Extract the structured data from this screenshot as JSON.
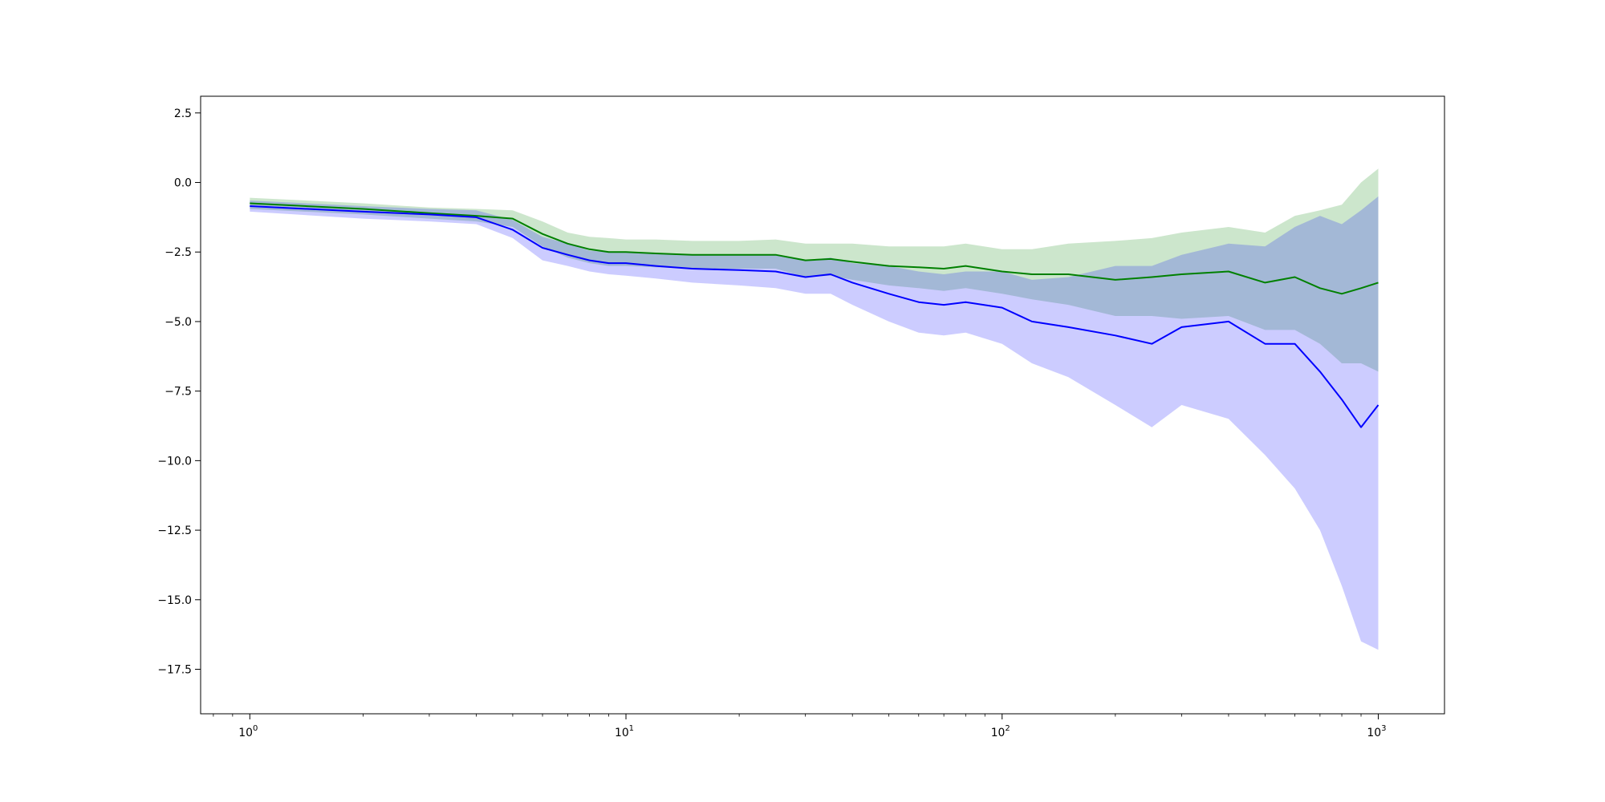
{
  "chart_data": {
    "type": "line",
    "title": "",
    "xlabel": "",
    "ylabel": "",
    "x_scale": "log",
    "xlim": [
      0.74,
      1500
    ],
    "ylim": [
      -19.1,
      3.1
    ],
    "grid": false,
    "legend": "none",
    "x_major_ticks": [
      {
        "value": 1,
        "base": "10",
        "exp": "0"
      },
      {
        "value": 10,
        "base": "10",
        "exp": "1"
      },
      {
        "value": 100,
        "base": "10",
        "exp": "2"
      },
      {
        "value": 1000,
        "base": "10",
        "exp": "3"
      }
    ],
    "x_minor_ticks": [
      0.8,
      0.9,
      2,
      3,
      4,
      5,
      6,
      7,
      8,
      9,
      20,
      30,
      40,
      50,
      60,
      70,
      80,
      90,
      200,
      300,
      400,
      500,
      600,
      700,
      800,
      900
    ],
    "y_ticks": [
      {
        "value": 2.5,
        "label": "2.5"
      },
      {
        "value": 0,
        "label": "0.0"
      },
      {
        "value": -2.5,
        "label": "−2.5"
      },
      {
        "value": -5,
        "label": "−5.0"
      },
      {
        "value": -7.5,
        "label": "−7.5"
      },
      {
        "value": -10,
        "label": "−10.0"
      },
      {
        "value": -12.5,
        "label": "−12.5"
      },
      {
        "value": -15,
        "label": "−15.0"
      },
      {
        "value": -17.5,
        "label": "−17.5"
      }
    ],
    "series": [
      {
        "color": "#008000",
        "band_color": "#008000",
        "band_opacity": 0.2,
        "points": [
          {
            "x": 1,
            "y": -0.75,
            "lo": -0.95,
            "hi": -0.55
          },
          {
            "x": 2,
            "y": -0.95,
            "lo": -1.15,
            "hi": -0.75
          },
          {
            "x": 3,
            "y": -1.1,
            "lo": -1.3,
            "hi": -0.9
          },
          {
            "x": 4,
            "y": -1.2,
            "lo": -1.4,
            "hi": -0.95
          },
          {
            "x": 5,
            "y": -1.3,
            "lo": -1.6,
            "hi": -1.0
          },
          {
            "x": 6,
            "y": -1.85,
            "lo": -2.3,
            "hi": -1.4
          },
          {
            "x": 7,
            "y": -2.2,
            "lo": -2.7,
            "hi": -1.8
          },
          {
            "x": 8,
            "y": -2.4,
            "lo": -2.9,
            "hi": -1.95
          },
          {
            "x": 9,
            "y": -2.5,
            "lo": -3.0,
            "hi": -2.0
          },
          {
            "x": 10,
            "y": -2.5,
            "lo": -3.0,
            "hi": -2.05
          },
          {
            "x": 12,
            "y": -2.55,
            "lo": -3.05,
            "hi": -2.05
          },
          {
            "x": 15,
            "y": -2.6,
            "lo": -3.1,
            "hi": -2.1
          },
          {
            "x": 20,
            "y": -2.6,
            "lo": -3.1,
            "hi": -2.1
          },
          {
            "x": 25,
            "y": -2.6,
            "lo": -3.1,
            "hi": -2.05
          },
          {
            "x": 30,
            "y": -2.8,
            "lo": -3.4,
            "hi": -2.2
          },
          {
            "x": 35,
            "y": -2.75,
            "lo": -3.35,
            "hi": -2.2
          },
          {
            "x": 40,
            "y": -2.85,
            "lo": -3.5,
            "hi": -2.2
          },
          {
            "x": 50,
            "y": -3.0,
            "lo": -3.7,
            "hi": -2.3
          },
          {
            "x": 60,
            "y": -3.05,
            "lo": -3.8,
            "hi": -2.3
          },
          {
            "x": 70,
            "y": -3.1,
            "lo": -3.9,
            "hi": -2.3
          },
          {
            "x": 80,
            "y": -3.0,
            "lo": -3.8,
            "hi": -2.2
          },
          {
            "x": 100,
            "y": -3.2,
            "lo": -4.0,
            "hi": -2.4
          },
          {
            "x": 120,
            "y": -3.3,
            "lo": -4.2,
            "hi": -2.4
          },
          {
            "x": 150,
            "y": -3.3,
            "lo": -4.4,
            "hi": -2.2
          },
          {
            "x": 200,
            "y": -3.5,
            "lo": -4.8,
            "hi": -2.1
          },
          {
            "x": 250,
            "y": -3.4,
            "lo": -4.8,
            "hi": -2.0
          },
          {
            "x": 300,
            "y": -3.3,
            "lo": -4.9,
            "hi": -1.8
          },
          {
            "x": 400,
            "y": -3.2,
            "lo": -4.8,
            "hi": -1.6
          },
          {
            "x": 500,
            "y": -3.6,
            "lo": -5.3,
            "hi": -1.8
          },
          {
            "x": 600,
            "y": -3.4,
            "lo": -5.3,
            "hi": -1.2
          },
          {
            "x": 700,
            "y": -3.8,
            "lo": -5.8,
            "hi": -1.0
          },
          {
            "x": 800,
            "y": -4.0,
            "lo": -6.5,
            "hi": -0.8
          },
          {
            "x": 900,
            "y": -3.8,
            "lo": -6.5,
            "hi": 0.0
          },
          {
            "x": 1000,
            "y": -3.6,
            "lo": -6.8,
            "hi": 0.5
          }
        ]
      },
      {
        "color": "#0000ff",
        "band_color": "#0000ff",
        "band_opacity": 0.2,
        "points": [
          {
            "x": 1,
            "y": -0.85,
            "lo": -1.05,
            "hi": -0.65
          },
          {
            "x": 2,
            "y": -1.05,
            "lo": -1.3,
            "hi": -0.85
          },
          {
            "x": 3,
            "y": -1.15,
            "lo": -1.4,
            "hi": -0.95
          },
          {
            "x": 4,
            "y": -1.25,
            "lo": -1.5,
            "hi": -1.0
          },
          {
            "x": 5,
            "y": -1.7,
            "lo": -2.0,
            "hi": -1.35
          },
          {
            "x": 6,
            "y": -2.35,
            "lo": -2.8,
            "hi": -1.95
          },
          {
            "x": 7,
            "y": -2.6,
            "lo": -3.0,
            "hi": -2.2
          },
          {
            "x": 8,
            "y": -2.8,
            "lo": -3.2,
            "hi": -2.45
          },
          {
            "x": 9,
            "y": -2.9,
            "lo": -3.3,
            "hi": -2.5
          },
          {
            "x": 10,
            "y": -2.9,
            "lo": -3.35,
            "hi": -2.5
          },
          {
            "x": 12,
            "y": -3.0,
            "lo": -3.45,
            "hi": -2.55
          },
          {
            "x": 15,
            "y": -3.1,
            "lo": -3.6,
            "hi": -2.6
          },
          {
            "x": 20,
            "y": -3.15,
            "lo": -3.7,
            "hi": -2.6
          },
          {
            "x": 25,
            "y": -3.2,
            "lo": -3.8,
            "hi": -2.6
          },
          {
            "x": 30,
            "y": -3.4,
            "lo": -4.0,
            "hi": -2.8
          },
          {
            "x": 35,
            "y": -3.3,
            "lo": -4.0,
            "hi": -2.7
          },
          {
            "x": 40,
            "y": -3.6,
            "lo": -4.4,
            "hi": -2.9
          },
          {
            "x": 50,
            "y": -4.0,
            "lo": -5.0,
            "hi": -3.0
          },
          {
            "x": 60,
            "y": -4.3,
            "lo": -5.4,
            "hi": -3.2
          },
          {
            "x": 70,
            "y": -4.4,
            "lo": -5.5,
            "hi": -3.3
          },
          {
            "x": 80,
            "y": -4.3,
            "lo": -5.4,
            "hi": -3.2
          },
          {
            "x": 100,
            "y": -4.5,
            "lo": -5.8,
            "hi": -3.2
          },
          {
            "x": 120,
            "y": -5.0,
            "lo": -6.5,
            "hi": -3.5
          },
          {
            "x": 150,
            "y": -5.2,
            "lo": -7.0,
            "hi": -3.4
          },
          {
            "x": 200,
            "y": -5.5,
            "lo": -8.0,
            "hi": -3.0
          },
          {
            "x": 250,
            "y": -5.8,
            "lo": -8.8,
            "hi": -3.0
          },
          {
            "x": 300,
            "y": -5.2,
            "lo": -8.0,
            "hi": -2.6
          },
          {
            "x": 400,
            "y": -5.0,
            "lo": -8.5,
            "hi": -2.2
          },
          {
            "x": 500,
            "y": -5.8,
            "lo": -9.8,
            "hi": -2.3
          },
          {
            "x": 600,
            "y": -5.8,
            "lo": -11.0,
            "hi": -1.6
          },
          {
            "x": 700,
            "y": -6.8,
            "lo": -12.5,
            "hi": -1.2
          },
          {
            "x": 800,
            "y": -7.8,
            "lo": -14.5,
            "hi": -1.5
          },
          {
            "x": 900,
            "y": -8.8,
            "lo": -16.5,
            "hi": -1.0
          },
          {
            "x": 1000,
            "y": -8.0,
            "lo": -16.8,
            "hi": -0.5
          }
        ]
      }
    ]
  }
}
